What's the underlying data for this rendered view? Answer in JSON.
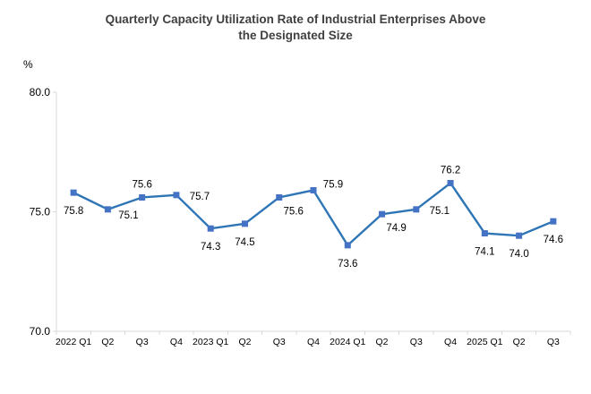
{
  "chart_data": {
    "type": "line",
    "title": "Quarterly Capacity Utilization Rate of Industrial Enterprises Above the Designated Size",
    "title_lines": [
      "Quarterly Capacity Utilization Rate of Industrial Enterprises Above",
      "the Designated Size"
    ],
    "unit_label": "%",
    "categories": [
      "2022 Q1",
      "Q2",
      "Q3",
      "Q4",
      "2023 Q1",
      "Q2",
      "Q3",
      "Q4",
      "2024 Q1",
      "Q2",
      "Q3",
      "Q4",
      "2025 Q1",
      "Q2",
      "Q3"
    ],
    "values": [
      75.8,
      75.1,
      75.6,
      75.7,
      74.3,
      74.5,
      75.6,
      75.9,
      73.6,
      74.9,
      75.1,
      76.2,
      74.1,
      74.0,
      74.6
    ],
    "label_placements": [
      "below",
      "right-below",
      "above",
      "right",
      "below",
      "below",
      "below-right",
      "above-right",
      "below",
      "below-right",
      "right",
      "above",
      "below",
      "below",
      "below"
    ],
    "y_ticks": [
      {
        "label": "80.0",
        "value": 80.0
      },
      {
        "label": "75.0",
        "value": 75.0
      },
      {
        "label": "70.0",
        "value": 70.0
      }
    ],
    "ylim": [
      70.0,
      80.0
    ],
    "grid": false,
    "legend": "none",
    "colors": {
      "line": "#2E75B6",
      "marker": "#4472C4",
      "axis": "#D9D9D9",
      "label_text": "#000000",
      "tick_text": "#000000",
      "title_text": "#404040"
    }
  }
}
